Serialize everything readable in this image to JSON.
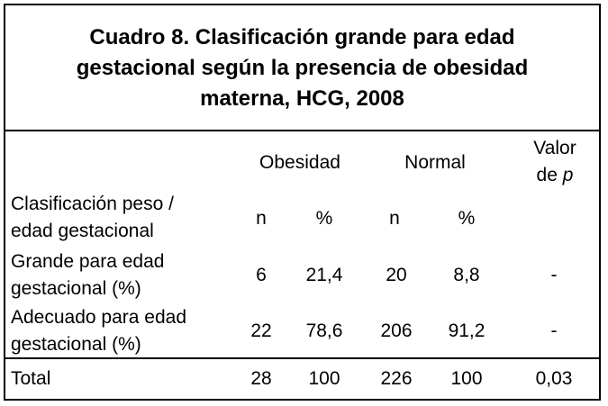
{
  "title": {
    "line1": "Cuadro 8. Clasificación grande para edad",
    "line2": "gestacional según  la presencia de obesidad",
    "line3": "materna, HCG, 2008"
  },
  "header": {
    "obesidad": "Obesidad",
    "normal": "Normal",
    "valor_line1": "Valor",
    "valor_line2_prefix": "de ",
    "valor_line2_p": "p"
  },
  "subheader": {
    "label_line1": "Clasificación  peso /",
    "label_line2": "edad gestacional",
    "n1": "n",
    "pct1": "%",
    "n2": "n",
    "pct2": "%"
  },
  "rows": [
    {
      "label_line1": "Grande para edad",
      "label_line2": "gestacional (%)",
      "n_obesidad": "6",
      "pct_obesidad": "21,4",
      "n_normal": "20",
      "pct_normal": "8,8",
      "valor_p": "-"
    },
    {
      "label_line1": "Adecuado para edad",
      "label_line2": "gestacional (%)",
      "n_obesidad": "22",
      "pct_obesidad": "78,6",
      "n_normal": "206",
      "pct_normal": "91,2",
      "valor_p": "-"
    }
  ],
  "total": {
    "label": "Total",
    "n_obesidad": "28",
    "pct_obesidad": "100",
    "n_normal": "226",
    "pct_normal": "100",
    "valor_p": "0,03"
  }
}
